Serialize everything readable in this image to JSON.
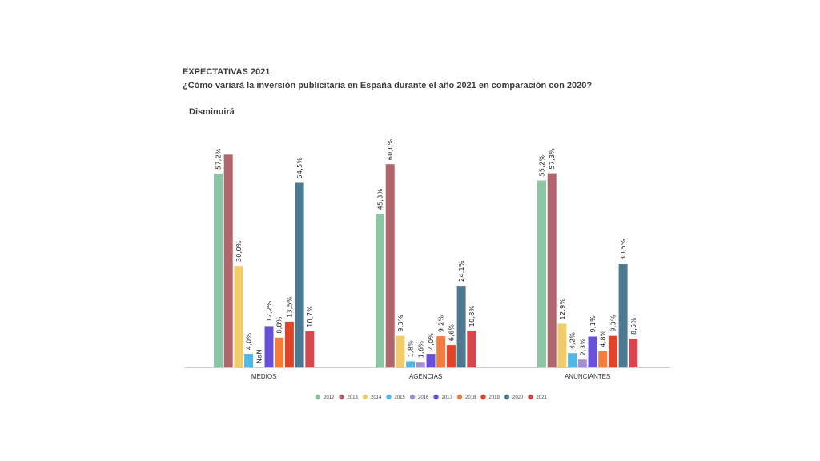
{
  "chart_data": {
    "type": "bar",
    "title": "EXPECTATIVAS 2021",
    "subtitle": "¿Cómo variará la inversión publicitaria en España durante el año 2021 en comparación con 2020?",
    "section": "Disminuirá",
    "xlabel": "",
    "ylabel": "",
    "ylim": [
      0,
      65
    ],
    "grid": false,
    "legend_position": "bottom",
    "categories": [
      "MEDIOS",
      "AGENCIAS",
      "ANUNCIANTES"
    ],
    "series": [
      {
        "name": "2012",
        "color": "#8cc5a3",
        "values": [
          57.2,
          45.3,
          55.2
        ],
        "labels": [
          "57,2%",
          "45,3%",
          "55,2%"
        ]
      },
      {
        "name": "2013",
        "color": "#b0666a",
        "values": [
          62.8,
          60.0,
          57.3
        ],
        "labels": [
          "",
          "60,0%",
          "57,3%"
        ]
      },
      {
        "name": "2014",
        "color": "#f2cc6b",
        "values": [
          30.0,
          9.3,
          12.9
        ],
        "labels": [
          "30,0%",
          "9,3%",
          "12,9%"
        ]
      },
      {
        "name": "2015",
        "color": "#4fb8e6",
        "values": [
          4.0,
          1.8,
          4.2
        ],
        "labels": [
          "4,0%",
          "1,8%",
          "4,2%"
        ]
      },
      {
        "name": "2016",
        "color": "#a58fd0",
        "values": [
          null,
          1.6,
          2.3
        ],
        "labels": [
          "NaN",
          "1,6%",
          "2,3%"
        ]
      },
      {
        "name": "2017",
        "color": "#6a4fd8",
        "values": [
          12.2,
          4.0,
          9.1
        ],
        "labels": [
          "12,2%",
          "4,0%",
          "9,1%"
        ]
      },
      {
        "name": "2018",
        "color": "#f47c3c",
        "values": [
          8.8,
          9.2,
          4.8
        ],
        "labels": [
          "8,8%",
          "9,2%",
          "4,8%"
        ]
      },
      {
        "name": "2019",
        "color": "#e0452a",
        "values": [
          13.5,
          6.6,
          9.3
        ],
        "labels": [
          "13,5%",
          "6,6%",
          "9,3%"
        ]
      },
      {
        "name": "2020",
        "color": "#4c7a92",
        "values": [
          54.5,
          24.1,
          30.5
        ],
        "labels": [
          "54,5%",
          "24,1%",
          "30,5%"
        ]
      },
      {
        "name": "2021",
        "color": "#d9474e",
        "values": [
          10.7,
          10.8,
          8.5
        ],
        "labels": [
          "10,7%",
          "10,8%",
          "8,5%"
        ]
      }
    ]
  }
}
